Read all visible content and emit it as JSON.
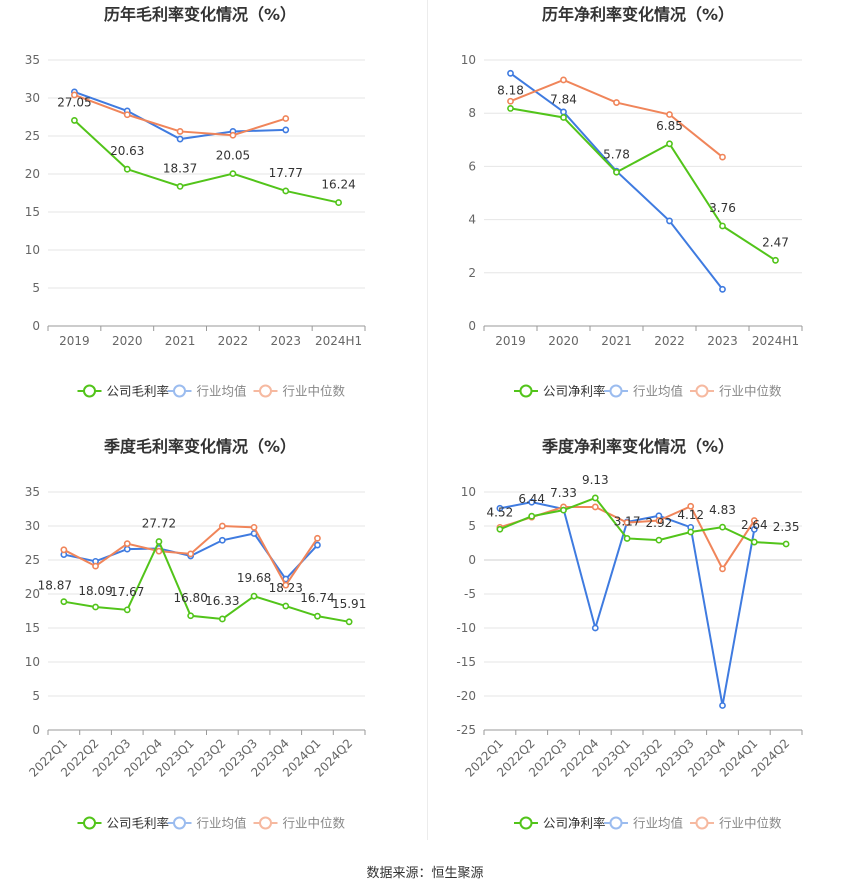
{
  "footer": {
    "source_label": "数据来源：恒生聚源"
  },
  "chart_data": [
    {
      "id": "annual-gross",
      "type": "line",
      "title": "历年毛利率变化情况（%）",
      "categories": [
        "2019",
        "2020",
        "2021",
        "2022",
        "2023",
        "2024H1"
      ],
      "ylim": [
        0,
        35
      ],
      "yticks": [
        0,
        5,
        10,
        15,
        20,
        25,
        30,
        35
      ],
      "series": [
        {
          "name": "公司毛利率",
          "color": "#52c41a",
          "values": [
            27.05,
            20.63,
            18.37,
            20.05,
            17.77,
            16.24
          ],
          "labels": [
            "27.05",
            "20.63",
            "18.37",
            "20.05",
            "17.77",
            "16.24"
          ]
        },
        {
          "name": "行业均值",
          "color": "#3f7be0",
          "values": [
            30.8,
            28.3,
            24.6,
            25.6,
            25.8,
            null
          ]
        },
        {
          "name": "行业中位数",
          "color": "#f0855a",
          "values": [
            30.4,
            27.8,
            25.6,
            25.1,
            27.3,
            null
          ]
        }
      ],
      "grid": true,
      "legend_position": "bottom"
    },
    {
      "id": "annual-net",
      "type": "line",
      "title": "历年净利率变化情况（%）",
      "categories": [
        "2019",
        "2020",
        "2021",
        "2022",
        "2023",
        "2024H1"
      ],
      "ylim": [
        0,
        10
      ],
      "yticks": [
        0,
        2,
        4,
        6,
        8,
        10
      ],
      "series": [
        {
          "name": "公司净利率",
          "color": "#52c41a",
          "values": [
            8.18,
            7.84,
            5.78,
            6.85,
            3.76,
            2.47
          ],
          "labels": [
            "8.18",
            "7.84",
            "5.78",
            "6.85",
            "3.76",
            "2.47"
          ]
        },
        {
          "name": "行业均值",
          "color": "#3f7be0",
          "values": [
            9.5,
            8.05,
            5.82,
            3.95,
            1.38,
            null
          ]
        },
        {
          "name": "行业中位数",
          "color": "#f0855a",
          "values": [
            8.45,
            9.25,
            8.4,
            7.95,
            6.35,
            null
          ]
        }
      ],
      "grid": true,
      "legend_position": "bottom"
    },
    {
      "id": "quarterly-gross",
      "type": "line",
      "title": "季度毛利率变化情况（%）",
      "categories": [
        "2022Q1",
        "2022Q2",
        "2022Q3",
        "2022Q4",
        "2023Q1",
        "2023Q2",
        "2023Q3",
        "2023Q4",
        "2024Q1",
        "2024Q2"
      ],
      "ylim": [
        0,
        35
      ],
      "yticks": [
        0,
        5,
        10,
        15,
        20,
        25,
        30,
        35
      ],
      "series": [
        {
          "name": "公司毛利率",
          "color": "#52c41a",
          "values": [
            18.87,
            18.09,
            17.67,
            27.72,
            16.8,
            16.33,
            19.68,
            18.23,
            16.74,
            15.91
          ],
          "labels": [
            "18.87",
            "18.09",
            "17.67",
            "27.72",
            "16.80",
            "16.33",
            "19.68",
            "18.23",
            "16.74",
            "15.91"
          ]
        },
        {
          "name": "行业均值",
          "color": "#3f7be0",
          "values": [
            25.8,
            24.8,
            26.6,
            26.7,
            25.6,
            27.9,
            28.9,
            22.2,
            27.2,
            null
          ]
        },
        {
          "name": "行业中位数",
          "color": "#f0855a",
          "values": [
            26.5,
            24.1,
            27.4,
            26.3,
            25.9,
            30.0,
            29.8,
            21.3,
            28.2,
            null
          ]
        }
      ],
      "grid": true,
      "legend_position": "bottom"
    },
    {
      "id": "quarterly-net",
      "type": "line",
      "title": "季度净利率变化情况（%）",
      "categories": [
        "2022Q1",
        "2022Q2",
        "2022Q3",
        "2022Q4",
        "2023Q1",
        "2023Q2",
        "2023Q3",
        "2023Q4",
        "2024Q1",
        "2024Q2"
      ],
      "ylim": [
        -25,
        10
      ],
      "yticks": [
        -25,
        -20,
        -15,
        -10,
        -5,
        0,
        5,
        10
      ],
      "series": [
        {
          "name": "公司净利率",
          "color": "#52c41a",
          "values": [
            4.52,
            6.44,
            7.33,
            9.13,
            3.17,
            2.92,
            4.12,
            4.83,
            2.64,
            2.35
          ],
          "labels": [
            "4.52",
            "6.44",
            "7.33",
            "9.13",
            "3.17",
            "2.92",
            "4.12",
            "4.83",
            "2.64",
            "2.35"
          ]
        },
        {
          "name": "行业均值",
          "color": "#3f7be0",
          "values": [
            7.6,
            8.5,
            7.5,
            -10.0,
            5.6,
            6.5,
            4.8,
            -21.4,
            4.5,
            null
          ]
        },
        {
          "name": "行业中位数",
          "color": "#f0855a",
          "values": [
            4.8,
            6.3,
            7.8,
            7.8,
            5.5,
            5.8,
            7.9,
            -1.3,
            5.8,
            null
          ]
        }
      ],
      "grid": true,
      "legend_position": "bottom"
    }
  ]
}
